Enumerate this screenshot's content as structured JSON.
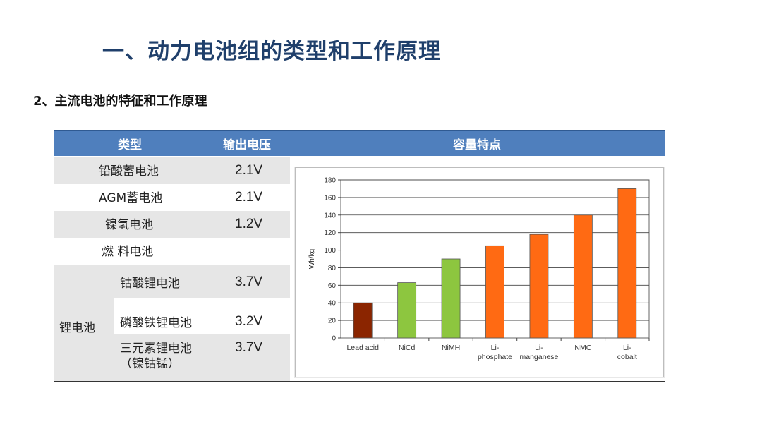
{
  "slide": {
    "title": "一、动力电池组的类型和工作原理",
    "subtitle": "2、主流电池的特征和工作原理"
  },
  "table": {
    "headers": {
      "type": "类型",
      "voltage": "输出电压",
      "capacity": "容量特点"
    },
    "rows": [
      {
        "name": "铅酸蓄电池",
        "voltage": "2.1V"
      },
      {
        "name": "AGM蓄电池",
        "voltage": "2.1V"
      },
      {
        "name": "镍氢电池",
        "voltage": "1.2V"
      },
      {
        "name": "燃 料电池",
        "voltage": ""
      }
    ],
    "lithium_group": {
      "name": "锂电池",
      "rows": [
        {
          "name": "钴酸锂电池",
          "voltage": "3.7V"
        },
        {
          "name": "磷酸铁锂电池",
          "voltage": "3.2V"
        },
        {
          "name": "三元素锂电池",
          "name_line2": "（镍钴锰）",
          "voltage": "3.7V"
        }
      ]
    }
  },
  "chart_data": {
    "type": "bar",
    "ylabel": "Wh/kg",
    "ylim": [
      0,
      180
    ],
    "yticks": [
      "0",
      "20",
      "40",
      "60",
      "80",
      "100",
      "120",
      "140",
      "160",
      "180"
    ],
    "grid": true,
    "categories": [
      [
        "Lead acid"
      ],
      [
        "NiCd"
      ],
      [
        "NiMH"
      ],
      [
        "Li-",
        "phosphate"
      ],
      [
        "Li-",
        "manganese"
      ],
      [
        "NMC"
      ],
      [
        "Li-",
        "cobalt"
      ]
    ],
    "values": [
      40,
      63,
      90,
      105,
      118,
      140,
      170
    ],
    "colors": [
      "#8b2500",
      "#8dc63f",
      "#8dc63f",
      "#ff6a13",
      "#ff6a13",
      "#ff6a13",
      "#ff6a13"
    ]
  }
}
